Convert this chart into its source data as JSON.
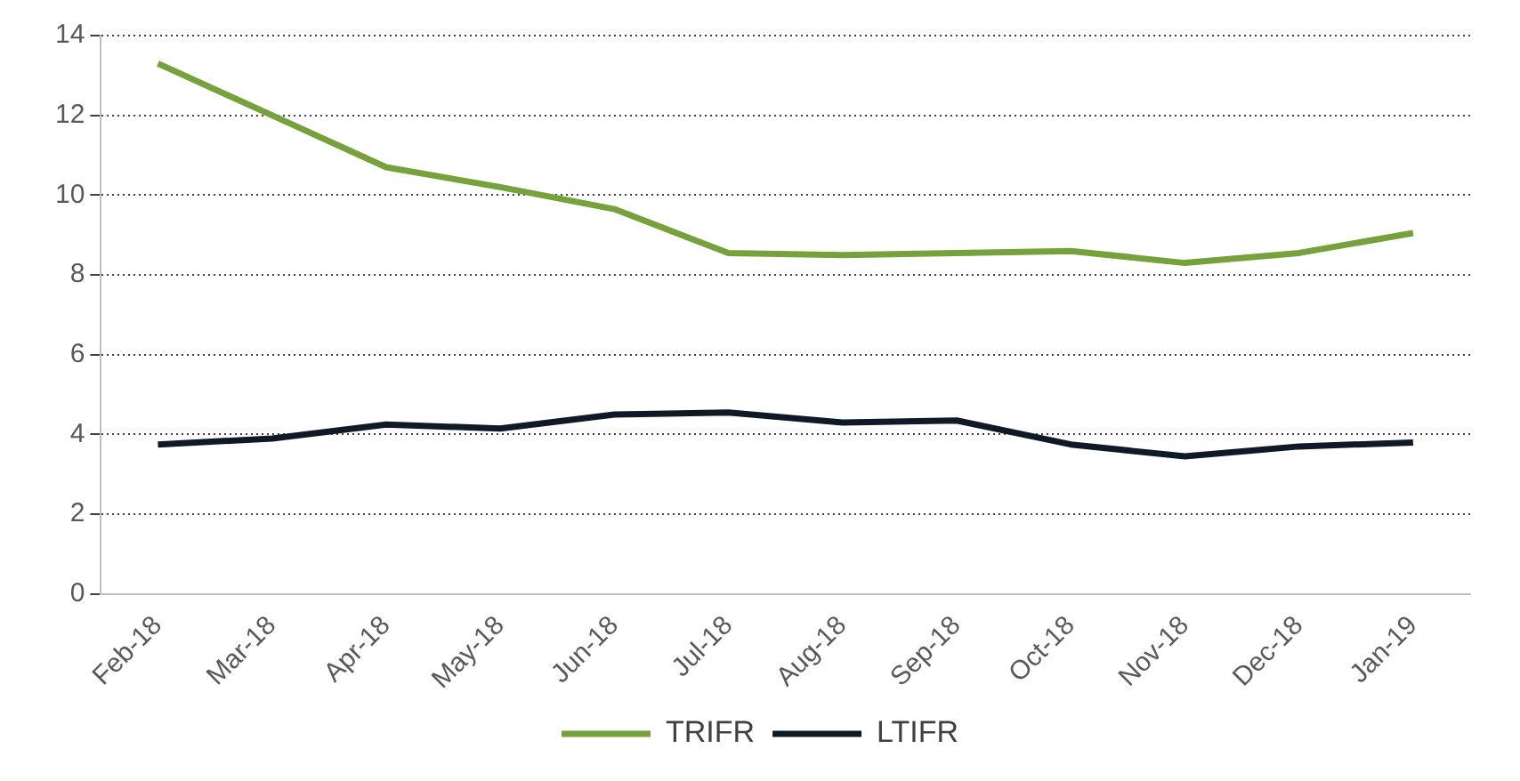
{
  "chart_data": {
    "type": "line",
    "categories": [
      "Feb-18",
      "Mar-18",
      "Apr-18",
      "May-18",
      "Jun-18",
      "Jul-18",
      "Aug-18",
      "Sep-18",
      "Oct-18",
      "Nov-18",
      "Dec-18",
      "Jan-19"
    ],
    "series": [
      {
        "name": "TRIFR",
        "color": "#77a13c",
        "values": [
          13.3,
          12.0,
          10.7,
          10.2,
          9.65,
          8.55,
          8.5,
          8.55,
          8.6,
          8.3,
          8.55,
          9.05
        ]
      },
      {
        "name": "LTIFR",
        "color": "#0f1a26",
        "values": [
          3.75,
          3.9,
          4.25,
          4.15,
          4.5,
          4.55,
          4.3,
          4.35,
          3.75,
          3.45,
          3.7,
          3.8
        ]
      }
    ],
    "ylim": [
      0,
      14
    ],
    "yticks": [
      0,
      2,
      4,
      6,
      8,
      10,
      12,
      14
    ],
    "grid": "y",
    "legend": "bottom",
    "marker": "none",
    "line_style": "solid"
  }
}
